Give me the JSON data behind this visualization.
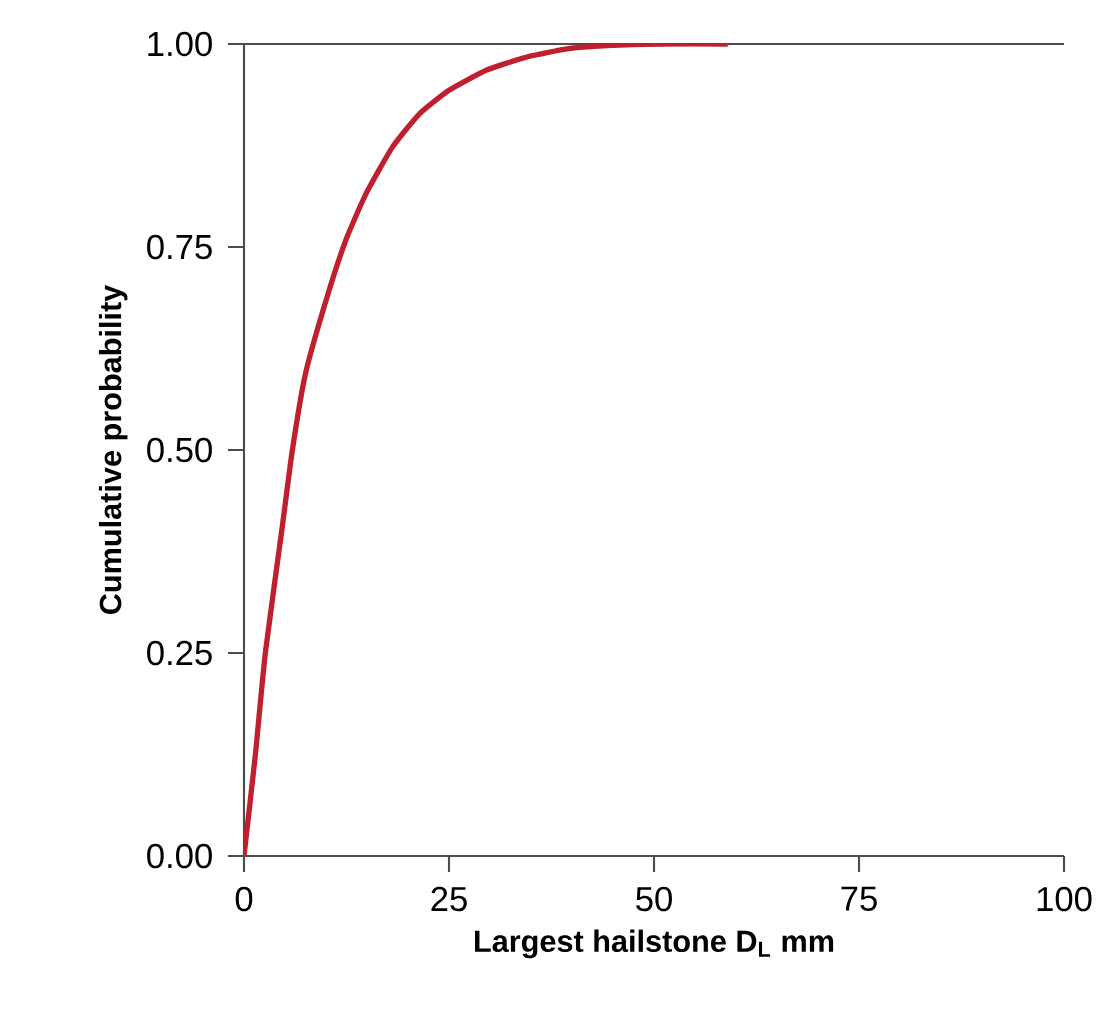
{
  "chart_data": {
    "type": "line",
    "xlabel": "Largest hailstone D$_{L}$ mm",
    "ylabel": "Cumulative probability",
    "x": [
      0,
      1.39,
      2.6,
      4.66,
      5.9,
      7.5,
      10.0,
      12.4,
      14.9,
      18.1,
      21.4,
      25.0,
      29.6,
      34.5,
      39.4,
      44.3,
      50.8,
      59.0
    ],
    "values": [
      0,
      0.125,
      0.25,
      0.405,
      0.5,
      0.594,
      0.684,
      0.758,
      0.816,
      0.873,
      0.914,
      0.943,
      0.968,
      0.984,
      0.994,
      0.998,
      1.0,
      1.0
    ],
    "color": "#c0202e",
    "xlim": [
      0,
      100
    ],
    "ylim": [
      0,
      1
    ],
    "xticks": [
      0,
      25,
      50,
      75,
      100
    ],
    "yticks": [
      {
        "value": 0,
        "label": "0.00"
      },
      {
        "value": 0.25,
        "label": "0.25"
      },
      {
        "value": 0.5,
        "label": "0.50"
      },
      {
        "value": 0.75,
        "label": "0.75"
      },
      {
        "value": 1,
        "label": "1.00"
      }
    ],
    "marker": "none",
    "line_style": "solid"
  }
}
